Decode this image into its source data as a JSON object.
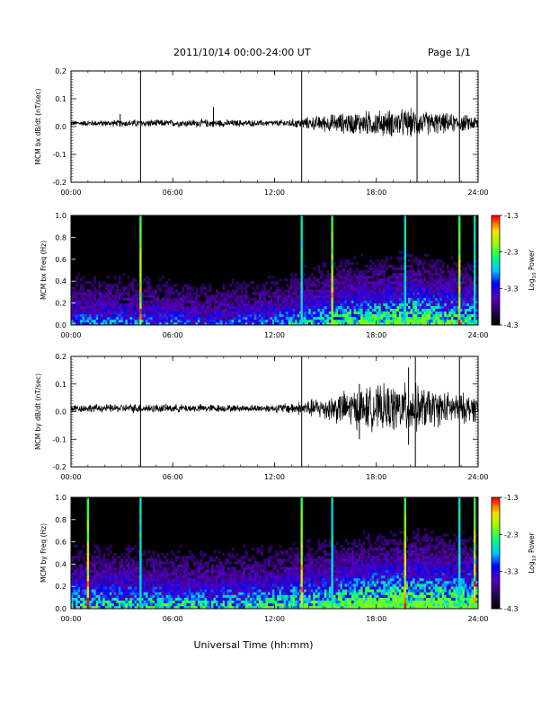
{
  "header": {
    "title": "2011/10/14  00:00-24:00 UT",
    "page": "Page 1/1"
  },
  "chart_data": [
    {
      "type": "line",
      "ylabel": "MCM bx dB/dt (nT/sec)",
      "ylim": [
        -0.2,
        0.2
      ],
      "yticks": [
        -0.2,
        -0.1,
        0.0,
        0.1,
        0.2
      ],
      "ytick_labels": [
        "-0.2",
        "-0.1",
        "0.0",
        "0.1",
        "0.2"
      ],
      "xticks_labels": [
        "00:00",
        "06:00",
        "12:00",
        "18:00",
        "24:00"
      ],
      "xlim_hours": [
        0,
        24
      ],
      "series": [
        {
          "envelope": {
            "hours": [
              0,
              3,
              4,
              6,
              8,
              10,
              12,
              13.5,
              15,
              16,
              17,
              18,
              19,
              20,
              21,
              22,
              23,
              24
            ],
            "amplitude": [
              0.008,
              0.01,
              0.012,
              0.01,
              0.012,
              0.01,
              0.009,
              0.015,
              0.025,
              0.03,
              0.035,
              0.038,
              0.04,
              0.042,
              0.035,
              0.03,
              0.025,
              0.022
            ]
          },
          "spikes": [
            {
              "hour": 4.1,
              "min": -0.2,
              "max": 0.2
            },
            {
              "hour": 13.6,
              "min": -0.2,
              "max": 0.2
            },
            {
              "hour": 20.4,
              "min": -0.2,
              "max": 0.2
            },
            {
              "hour": 22.9,
              "min": -0.2,
              "max": 0.2
            },
            {
              "hour": 8.4,
              "min": 0.0,
              "max": 0.07
            },
            {
              "hour": 2.9,
              "min": 0.0,
              "max": 0.045
            }
          ]
        }
      ]
    },
    {
      "type": "heatmap",
      "ylabel": "MCM bx Freq (Hz)",
      "ylim": [
        0.0,
        1.0
      ],
      "ytick_labels": [
        "0.0",
        "0.2",
        "0.4",
        "0.6",
        "0.8",
        "1.0"
      ],
      "xticks_labels": [
        "00:00",
        "06:00",
        "12:00",
        "18:00",
        "24:00"
      ],
      "xlim_hours": [
        0,
        24
      ],
      "colorbar": {
        "label": "Log10 Power",
        "range": [
          -4.3,
          -1.3
        ],
        "tick_labels": [
          "-1.3",
          "-2.3",
          "-3.3",
          "-4.3"
        ]
      },
      "vertical_lines_hours": [
        4.1,
        13.6,
        15.4,
        19.7,
        22.9,
        23.8
      ],
      "activity_profile": {
        "hours": [
          0,
          4,
          8,
          12,
          14,
          16,
          18,
          20,
          22,
          24
        ],
        "level": [
          0.35,
          0.35,
          0.3,
          0.35,
          0.45,
          0.55,
          0.6,
          0.7,
          0.6,
          0.55
        ]
      }
    },
    {
      "type": "line",
      "ylabel": "MCM by dB/dt (nT/sec)",
      "ylim": [
        -0.2,
        0.2
      ],
      "yticks": [
        -0.2,
        -0.1,
        0.0,
        0.1,
        0.2
      ],
      "ytick_labels": [
        "-0.2",
        "-0.1",
        "0.0",
        "0.1",
        "0.2"
      ],
      "xticks_labels": [
        "00:00",
        "06:00",
        "12:00",
        "18:00",
        "24:00"
      ],
      "xlim_hours": [
        0,
        24
      ],
      "series": [
        {
          "envelope": {
            "hours": [
              0,
              3,
              4,
              6,
              8,
              10,
              12,
              13.5,
              15,
              16,
              17,
              18,
              19,
              20,
              21,
              22,
              23,
              24
            ],
            "amplitude": [
              0.012,
              0.012,
              0.014,
              0.012,
              0.012,
              0.01,
              0.012,
              0.02,
              0.035,
              0.05,
              0.06,
              0.065,
              0.07,
              0.075,
              0.06,
              0.05,
              0.045,
              0.04
            ]
          },
          "spikes": [
            {
              "hour": 4.1,
              "min": -0.2,
              "max": 0.2
            },
            {
              "hour": 13.6,
              "min": -0.2,
              "max": 0.2
            },
            {
              "hour": 20.3,
              "min": -0.2,
              "max": 0.2
            },
            {
              "hour": 22.9,
              "min": -0.2,
              "max": 0.2
            },
            {
              "hour": 19.9,
              "min": -0.12,
              "max": 0.16
            },
            {
              "hour": 17.0,
              "min": -0.1,
              "max": 0.1
            }
          ]
        }
      ]
    },
    {
      "type": "heatmap",
      "ylabel": "MCM by Freq (Hz)",
      "ylim": [
        0.0,
        1.0
      ],
      "ytick_labels": [
        "0.0",
        "0.2",
        "0.4",
        "0.6",
        "0.8",
        "1.0"
      ],
      "xticks_labels": [
        "00:00",
        "06:00",
        "12:00",
        "18:00",
        "24:00"
      ],
      "xlim_hours": [
        0,
        24
      ],
      "colorbar": {
        "label": "Log10 Power",
        "range": [
          -4.3,
          -1.3
        ],
        "tick_labels": [
          "-1.3",
          "-2.3",
          "-3.3",
          "-4.3"
        ]
      },
      "vertical_lines_hours": [
        1.0,
        4.1,
        13.6,
        15.4,
        19.7,
        22.9,
        23.8
      ],
      "activity_profile": {
        "hours": [
          0,
          4,
          8,
          12,
          14,
          16,
          18,
          20,
          22,
          24
        ],
        "level": [
          0.5,
          0.5,
          0.45,
          0.5,
          0.6,
          0.65,
          0.75,
          0.8,
          0.75,
          0.7
        ]
      }
    }
  ],
  "footer": {
    "xlabel": "Universal Time (hh:mm)"
  },
  "colors": {
    "trace": "#000000",
    "background": "#000000"
  }
}
